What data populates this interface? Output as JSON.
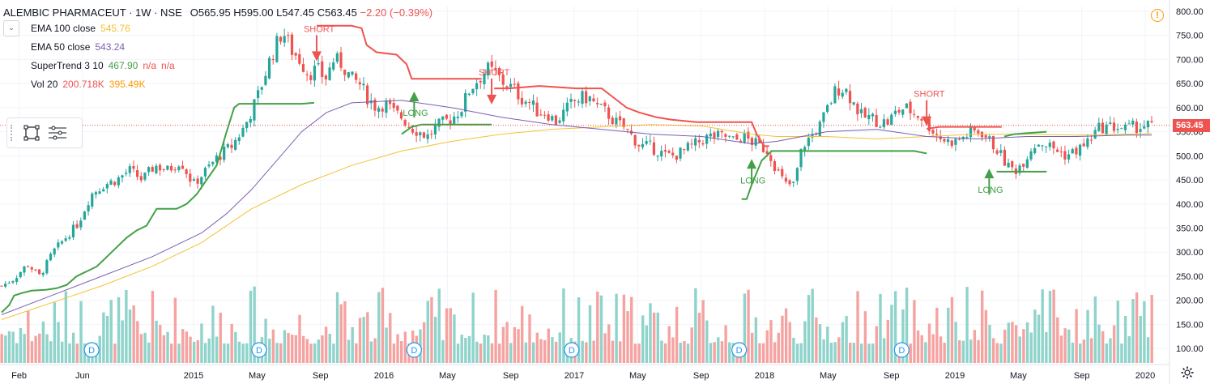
{
  "header": {
    "symbol": "ALEMBIC PHARMACEUT · 1W · NSE",
    "open": "O565.95",
    "high": "H595.00",
    "low": "L547.45",
    "close": "C563.45",
    "change": "−2.20 (−0.39%)"
  },
  "indicators": [
    {
      "name": "EMA 100 close",
      "values": [
        "545.76"
      ],
      "colors": [
        "#f4c235"
      ]
    },
    {
      "name": "EMA 50 close",
      "values": [
        "543.24"
      ],
      "colors": [
        "#7b5fb0"
      ]
    },
    {
      "name": "SuperTrend 3 10",
      "values": [
        "467.90",
        "n/a",
        "n/a"
      ],
      "colors": [
        "#43a047",
        "#ef5350",
        "#ef5350"
      ]
    },
    {
      "name": "Vol 20",
      "values": [
        "200.718K",
        "395.49K"
      ],
      "colors": [
        "#ef5350",
        "#ff9800"
      ]
    }
  ],
  "last_price": "563.45",
  "colors": {
    "up": "#26a69a",
    "down": "#ef5350",
    "vol_up": "#8fd3cb",
    "vol_down": "#f5a3a1",
    "ema100": "#f4c235",
    "ema50": "#7b5fb0",
    "st_long": "#43a047",
    "st_short": "#ef5350",
    "grid": "#f0f3fa",
    "axis_text": "#131722"
  },
  "icons": {
    "alert": "alert-icon",
    "settings": "gear-icon",
    "rectangle_tool": "rectangle-tool-icon",
    "list_tool": "object-list-icon"
  },
  "chart_data": {
    "type": "candlestick",
    "title": "ALEMBIC PHARMACEUT · 1W · NSE",
    "price_axis": {
      "min": 70,
      "max": 810,
      "ticks": [
        100,
        150,
        200,
        250,
        300,
        350,
        400,
        450,
        500,
        550,
        600,
        650,
        700,
        750,
        800
      ],
      "tick_labels": [
        "100.00",
        "150.00",
        "200.00",
        "250.00",
        "300.00",
        "350.00",
        "400.00",
        "450.00",
        "500.00",
        "550.00",
        "600.00",
        "650.00",
        "700.00",
        "750.00",
        "800.00"
      ]
    },
    "time_axis": {
      "start": "2014-02",
      "end": "2020-01",
      "tick_labels": [
        "Feb",
        "Jun",
        "2015",
        "May",
        "Sep",
        "2016",
        "May",
        "Sep",
        "2017",
        "May",
        "Sep",
        "2018",
        "May",
        "Sep",
        "2019",
        "May",
        "Sep",
        "2020"
      ],
      "tick_months": [
        1,
        5,
        12,
        16,
        20,
        24,
        28,
        32,
        36,
        40,
        44,
        48,
        52,
        56,
        60,
        64,
        68,
        72
      ]
    },
    "volume_axis": {
      "ref_price_scale": true
    },
    "candles_anchor_closes": [
      [
        0,
        230
      ],
      [
        3,
        245
      ],
      [
        6,
        275
      ],
      [
        9,
        250
      ],
      [
        12,
        300
      ],
      [
        15,
        330
      ],
      [
        18,
        360
      ],
      [
        21,
        420
      ],
      [
        24,
        440
      ],
      [
        27,
        450
      ],
      [
        30,
        470
      ],
      [
        33,
        450
      ],
      [
        36,
        480
      ],
      [
        39,
        470
      ],
      [
        42,
        490
      ],
      [
        45,
        440
      ],
      [
        48,
        470
      ],
      [
        51,
        500
      ],
      [
        54,
        520
      ],
      [
        57,
        560
      ],
      [
        60,
        620
      ],
      [
        63,
        700
      ],
      [
        66,
        760
      ],
      [
        68,
        720
      ],
      [
        70,
        700
      ],
      [
        72,
        670
      ],
      [
        74,
        680
      ],
      [
        76,
        660
      ],
      [
        78,
        700
      ],
      [
        80,
        690
      ],
      [
        82,
        660
      ],
      [
        84,
        650
      ],
      [
        86,
        620
      ],
      [
        88,
        600
      ],
      [
        90,
        610
      ],
      [
        92,
        590
      ],
      [
        94,
        580
      ],
      [
        96,
        560
      ],
      [
        98,
        550
      ],
      [
        100,
        540
      ],
      [
        102,
        560
      ],
      [
        104,
        570
      ],
      [
        106,
        580
      ],
      [
        108,
        600
      ],
      [
        110,
        640
      ],
      [
        112,
        660
      ],
      [
        114,
        680
      ],
      [
        116,
        670
      ],
      [
        118,
        650
      ],
      [
        120,
        640
      ],
      [
        122,
        620
      ],
      [
        124,
        610
      ],
      [
        126,
        590
      ],
      [
        128,
        590
      ],
      [
        130,
        570
      ],
      [
        132,
        590
      ],
      [
        134,
        610
      ],
      [
        136,
        620
      ],
      [
        138,
        620
      ],
      [
        140,
        600
      ],
      [
        142,
        590
      ],
      [
        144,
        570
      ],
      [
        146,
        560
      ],
      [
        148,
        540
      ],
      [
        150,
        520
      ],
      [
        152,
        520
      ],
      [
        154,
        510
      ],
      [
        156,
        500
      ],
      [
        158,
        500
      ],
      [
        160,
        510
      ],
      [
        162,
        520
      ],
      [
        164,
        530
      ],
      [
        166,
        540
      ],
      [
        168,
        540
      ],
      [
        170,
        540
      ],
      [
        172,
        530
      ],
      [
        174,
        540
      ],
      [
        176,
        530
      ],
      [
        178,
        520
      ],
      [
        180,
        510
      ],
      [
        182,
        470
      ],
      [
        184,
        440
      ],
      [
        186,
        440
      ],
      [
        188,
        520
      ],
      [
        190,
        540
      ],
      [
        192,
        560
      ],
      [
        194,
        600
      ],
      [
        196,
        640
      ],
      [
        198,
        640
      ],
      [
        200,
        610
      ],
      [
        202,
        580
      ],
      [
        204,
        580
      ],
      [
        206,
        570
      ],
      [
        208,
        570
      ],
      [
        210,
        590
      ],
      [
        212,
        600
      ],
      [
        214,
        590
      ],
      [
        216,
        580
      ],
      [
        218,
        560
      ],
      [
        220,
        540
      ],
      [
        222,
        530
      ],
      [
        224,
        530
      ],
      [
        226,
        540
      ],
      [
        228,
        550
      ],
      [
        230,
        550
      ],
      [
        232,
        530
      ],
      [
        234,
        510
      ],
      [
        236,
        480
      ],
      [
        238,
        470
      ],
      [
        240,
        490
      ],
      [
        242,
        520
      ],
      [
        244,
        530
      ],
      [
        246,
        520
      ],
      [
        248,
        510
      ],
      [
        250,
        500
      ],
      [
        252,
        510
      ],
      [
        254,
        520
      ],
      [
        256,
        540
      ],
      [
        258,
        560
      ],
      [
        260,
        560
      ],
      [
        262,
        560
      ],
      [
        264,
        555
      ],
      [
        266,
        560
      ],
      [
        268,
        562
      ],
      [
        270,
        563
      ]
    ],
    "weeks_total": 306,
    "ema100": [
      [
        0,
        160
      ],
      [
        20,
        195
      ],
      [
        40,
        230
      ],
      [
        60,
        270
      ],
      [
        80,
        320
      ],
      [
        100,
        390
      ],
      [
        120,
        440
      ],
      [
        140,
        480
      ],
      [
        160,
        510
      ],
      [
        180,
        530
      ],
      [
        200,
        545
      ],
      [
        220,
        555
      ],
      [
        240,
        560
      ],
      [
        260,
        565
      ],
      [
        280,
        562
      ],
      [
        300,
        545
      ],
      [
        310,
        540
      ],
      [
        330,
        540
      ],
      [
        350,
        535
      ],
      [
        370,
        540
      ],
      [
        390,
        545
      ],
      [
        410,
        545
      ],
      [
        430,
        543
      ],
      [
        450,
        545
      ],
      [
        460,
        546
      ]
    ],
    "ema50": [
      [
        0,
        170
      ],
      [
        20,
        210
      ],
      [
        40,
        250
      ],
      [
        60,
        290
      ],
      [
        80,
        340
      ],
      [
        90,
        380
      ],
      [
        100,
        430
      ],
      [
        110,
        490
      ],
      [
        120,
        550
      ],
      [
        130,
        590
      ],
      [
        140,
        610
      ],
      [
        160,
        615
      ],
      [
        180,
        600
      ],
      [
        200,
        580
      ],
      [
        220,
        565
      ],
      [
        240,
        555
      ],
      [
        260,
        545
      ],
      [
        280,
        540
      ],
      [
        300,
        525
      ],
      [
        310,
        530
      ],
      [
        330,
        550
      ],
      [
        350,
        555
      ],
      [
        370,
        540
      ],
      [
        390,
        535
      ],
      [
        410,
        540
      ],
      [
        430,
        540
      ],
      [
        450,
        543
      ],
      [
        460,
        543
      ]
    ],
    "supertrend": {
      "long_segments": [
        [
          [
            0,
            175
          ],
          [
            3,
            190
          ],
          [
            5,
            210
          ],
          [
            8,
            215
          ],
          [
            12,
            220
          ],
          [
            18,
            222
          ],
          [
            22,
            225
          ],
          [
            26,
            232
          ],
          [
            30,
            250
          ],
          [
            34,
            260
          ],
          [
            38,
            270
          ],
          [
            42,
            290
          ],
          [
            46,
            310
          ],
          [
            50,
            330
          ],
          [
            54,
            345
          ],
          [
            58,
            355
          ],
          [
            62,
            390
          ],
          [
            66,
            390
          ],
          [
            70,
            390
          ],
          [
            74,
            400
          ],
          [
            78,
            420
          ],
          [
            82,
            450
          ],
          [
            86,
            480
          ],
          [
            90,
            550
          ],
          [
            93,
            600
          ],
          [
            95,
            608
          ],
          [
            100,
            608
          ],
          [
            110,
            608
          ],
          [
            120,
            608
          ],
          [
            125,
            610
          ]
        ],
        [
          [
            160,
            545
          ],
          [
            164,
            560
          ],
          [
            168,
            565
          ],
          [
            178,
            565
          ],
          [
            188,
            565
          ],
          [
            194,
            565
          ],
          [
            196,
            565
          ]
        ],
        [
          [
            296,
            410
          ],
          [
            298,
            410
          ],
          [
            300,
            440
          ],
          [
            304,
            490
          ],
          [
            308,
            510
          ],
          [
            315,
            510
          ],
          [
            330,
            510
          ],
          [
            350,
            510
          ],
          [
            365,
            510
          ],
          [
            370,
            505
          ]
        ],
        [
          [
            401,
            540
          ],
          [
            405,
            545
          ],
          [
            410,
            547
          ],
          [
            418,
            550
          ]
        ],
        [
          [
            398,
            467
          ],
          [
            402,
            467
          ],
          [
            412,
            467
          ],
          [
            418,
            467
          ]
        ]
      ],
      "short_segments": [
        [
          [
            126,
            770
          ],
          [
            132,
            770
          ],
          [
            136,
            770
          ],
          [
            140,
            770
          ],
          [
            144,
            765
          ],
          [
            146,
            730
          ],
          [
            150,
            715
          ],
          [
            158,
            710
          ],
          [
            162,
            690
          ],
          [
            164,
            660
          ],
          [
            175,
            660
          ],
          [
            186,
            660
          ],
          [
            192,
            660
          ]
        ],
        [
          [
            197,
            640
          ],
          [
            203,
            640
          ],
          [
            215,
            645
          ],
          [
            230,
            640
          ],
          [
            240,
            640
          ],
          [
            245,
            620
          ],
          [
            250,
            600
          ],
          [
            255,
            590
          ],
          [
            262,
            580
          ],
          [
            268,
            575
          ],
          [
            278,
            570
          ],
          [
            290,
            570
          ],
          [
            300,
            570
          ],
          [
            302,
            545
          ],
          [
            305,
            520
          ],
          [
            307,
            520
          ]
        ],
        [
          [
            370,
            556
          ],
          [
            375,
            560
          ],
          [
            385,
            560
          ],
          [
            395,
            560
          ],
          [
            400,
            560
          ]
        ]
      ],
      "signals": [
        {
          "type": "SHORT",
          "week": 126,
          "price": 700
        },
        {
          "type": "LONG",
          "week": 165,
          "price": 630
        },
        {
          "type": "SHORT",
          "week": 196,
          "price": 610
        },
        {
          "type": "LONG",
          "week": 300,
          "price": 490
        },
        {
          "type": "SHORT",
          "week": 370,
          "price": 565
        },
        {
          "type": "LONG",
          "week": 395,
          "price": 470
        }
      ]
    },
    "dividends": [
      {
        "week": 36,
        "label": "D"
      },
      {
        "week": 103,
        "label": "D"
      },
      {
        "week": 165,
        "label": "D"
      },
      {
        "week": 228,
        "label": "D"
      },
      {
        "week": 295,
        "label": "D"
      },
      {
        "week": 360,
        "label": "D"
      }
    ],
    "annotations": [
      "SHORT",
      "LONG",
      "SHORT",
      "LONG",
      "SHORT",
      "LONG"
    ]
  }
}
